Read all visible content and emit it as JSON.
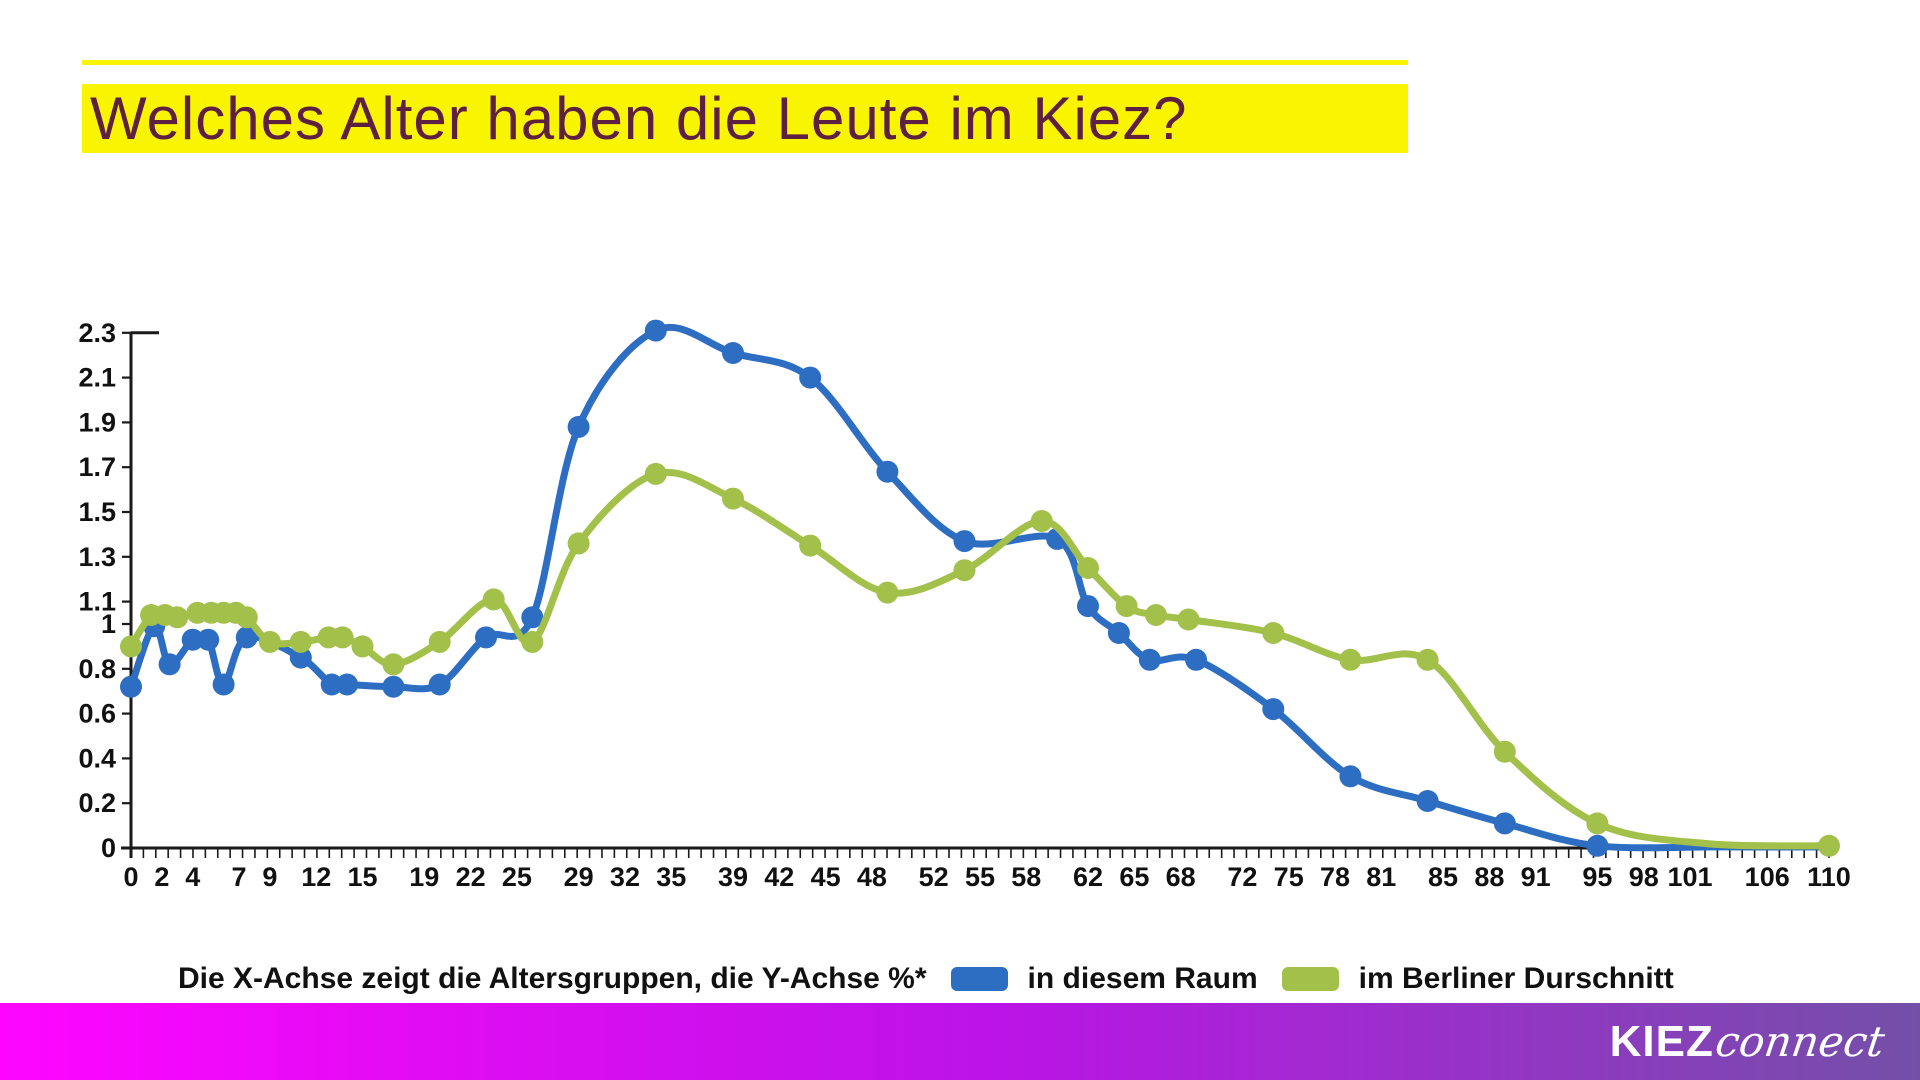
{
  "title": {
    "text": "Welches Alter haben die Leute im Kiez?"
  },
  "caption": {
    "text": "Die X-Achse zeigt die Altersgruppen, die Y-Achse %*"
  },
  "legend": {
    "items": [
      {
        "label": "in diesem Raum",
        "color": "#2d6ec3"
      },
      {
        "label": "im Berliner Durschnitt",
        "color": "#a3c04b"
      }
    ]
  },
  "footer": {
    "brand_bold": "KIEZ",
    "brand_script": "connect"
  },
  "colors": {
    "highlight_yellow": "#f9f400",
    "title_text": "#5e2040",
    "axis": "#1a1a1a",
    "tick_label": "#111111",
    "blue": "#2d6ec3",
    "green": "#a3c04b",
    "footer_gradient_left": "#fe06fe",
    "footer_gradient_mid": "#bb14e6",
    "footer_gradient_right": "#7350a8"
  },
  "chart_data": {
    "type": "line",
    "title": "",
    "xlabel": "Altersgruppen",
    "ylabel": "%",
    "xlim": [
      0,
      110
    ],
    "ylim": [
      0,
      2.3
    ],
    "grid": false,
    "legend_position": "bottom",
    "x_labeled_ticks": [
      0,
      2,
      4,
      7,
      9,
      12,
      15,
      19,
      22,
      25,
      29,
      32,
      35,
      39,
      42,
      45,
      48,
      52,
      55,
      58,
      62,
      65,
      68,
      72,
      75,
      78,
      81,
      85,
      88,
      91,
      95,
      98,
      101,
      106,
      110
    ],
    "x_minor_tick_count": 138,
    "y_tick_values": [
      0,
      0.2,
      0.4,
      0.6,
      0.8,
      1,
      1.1,
      1.3,
      1.5,
      1.7,
      1.9,
      2.1,
      2.3
    ],
    "y_tick_labels": [
      "0",
      "0.2",
      "0.4",
      "0.6",
      "0.8",
      "1",
      "1.1",
      "1.3",
      "1.5",
      "1.7",
      "1.9",
      "2.1",
      "2.3"
    ],
    "series": [
      {
        "name": "in diesem Raum",
        "color": "#2d6ec3",
        "points": [
          [
            0,
            0.72
          ],
          [
            1.5,
            0.99
          ],
          [
            2.5,
            0.82
          ],
          [
            4,
            0.93
          ],
          [
            5,
            0.93
          ],
          [
            6,
            0.73
          ],
          [
            7.5,
            0.94
          ],
          [
            11,
            0.85
          ],
          [
            13,
            0.73
          ],
          [
            14,
            0.73
          ],
          [
            17,
            0.72
          ],
          [
            20,
            0.73
          ],
          [
            23,
            0.94
          ],
          [
            26,
            1.03
          ],
          [
            29,
            1.88
          ],
          [
            34,
            2.31
          ],
          [
            39,
            2.21
          ],
          [
            44,
            2.1
          ],
          [
            49,
            1.68
          ],
          [
            54,
            1.37
          ],
          [
            60,
            1.38
          ],
          [
            62,
            1.08
          ],
          [
            64,
            0.96
          ],
          [
            66,
            0.84
          ],
          [
            69,
            0.84
          ],
          [
            74,
            0.62
          ],
          [
            79,
            0.32
          ],
          [
            84,
            0.21
          ],
          [
            89,
            0.11
          ],
          [
            95,
            0.01
          ],
          [
            103,
            0.005,
            0
          ],
          [
            110,
            0.005,
            0
          ]
        ]
      },
      {
        "name": "im Berliner Durschnitt",
        "color": "#a3c04b",
        "points": [
          [
            0,
            0.9
          ],
          [
            1.3,
            1.04
          ],
          [
            2.2,
            1.04
          ],
          [
            3,
            1.03
          ],
          [
            4.3,
            1.05
          ],
          [
            5.2,
            1.05
          ],
          [
            6,
            1.05
          ],
          [
            6.8,
            1.05
          ],
          [
            7.5,
            1.03
          ],
          [
            9,
            0.92
          ],
          [
            11,
            0.92
          ],
          [
            12.8,
            0.94
          ],
          [
            13.7,
            0.94
          ],
          [
            15,
            0.9
          ],
          [
            17,
            0.82
          ],
          [
            20,
            0.92
          ],
          [
            23.5,
            1.11
          ],
          [
            26,
            0.92
          ],
          [
            29,
            1.36
          ],
          [
            34,
            1.67
          ],
          [
            39,
            1.56
          ],
          [
            44,
            1.35
          ],
          [
            49,
            1.14
          ],
          [
            54,
            1.24
          ],
          [
            59,
            1.46
          ],
          [
            62,
            1.25
          ],
          [
            64.5,
            1.08
          ],
          [
            66.4,
            1.04
          ],
          [
            68.5,
            1.02
          ],
          [
            74,
            0.96
          ],
          [
            79,
            0.84
          ],
          [
            84,
            0.84
          ],
          [
            89,
            0.43
          ],
          [
            95,
            0.11
          ],
          [
            102,
            0.02,
            0
          ],
          [
            110,
            0.01
          ]
        ]
      }
    ]
  }
}
